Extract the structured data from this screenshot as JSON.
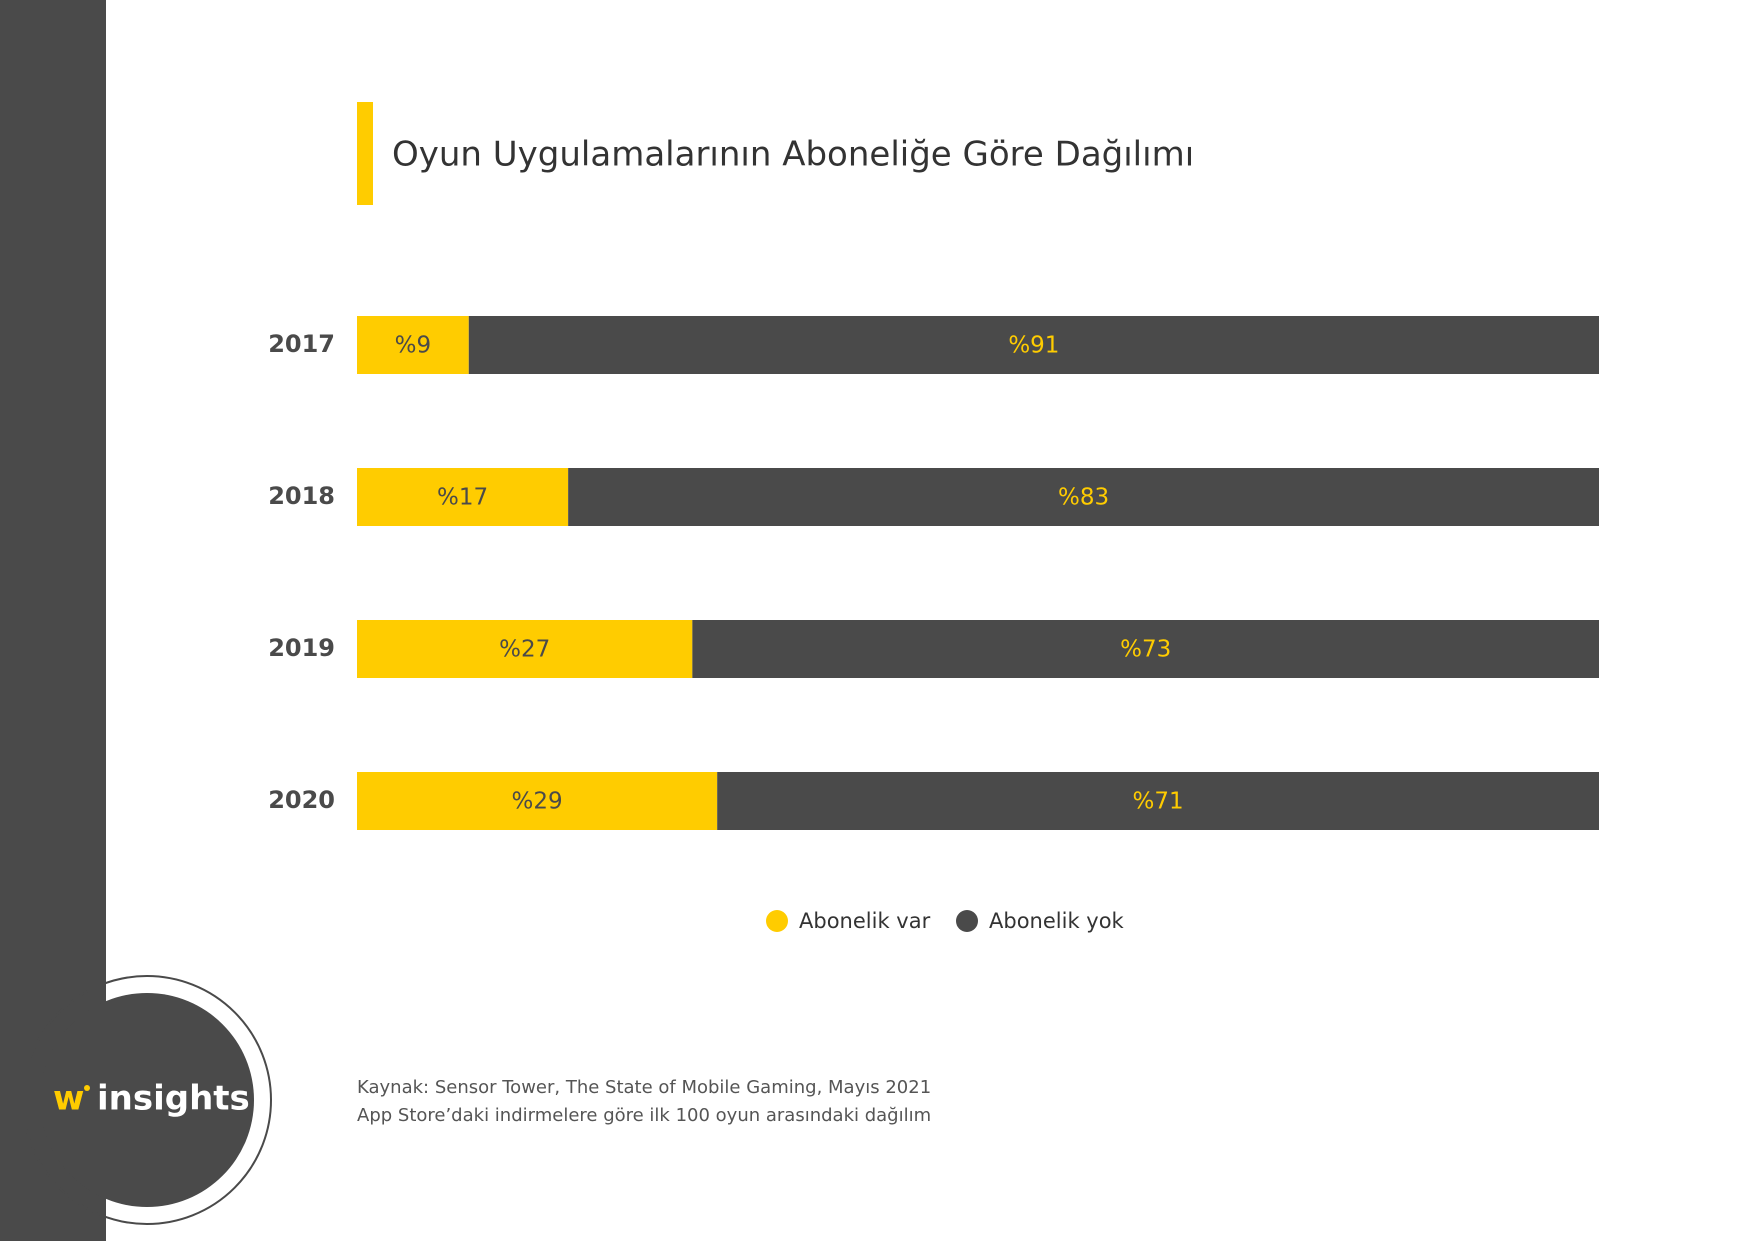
{
  "chart_data": {
    "type": "stacked-bar-horizontal",
    "title": "Oyun Uygulamalarının Aboneliğe Göre Dağılımı",
    "categories": [
      "2017",
      "2018",
      "2019",
      "2020"
    ],
    "series": [
      {
        "name": "Abonelik var",
        "color": "#ffcc00",
        "label_color": "#4a4a4a",
        "values": [
          9,
          17,
          27,
          29
        ],
        "value_labels": [
          "%9",
          "%17",
          "%27",
          "%29"
        ]
      },
      {
        "name": "Abonelik yok",
        "color": "#4a4a4a",
        "label_color": "#ffcc00",
        "values": [
          91,
          83,
          73,
          71
        ],
        "value_labels": [
          "%91",
          "%83",
          "%73",
          "%71"
        ]
      }
    ],
    "source": [
      "Kaynak: Sensor Tower, The State of Mobile Gaming, Mayıs 2021",
      "App Store’daki indirmelere göre ilk 100 oyun arasındaki dağılım"
    ]
  },
  "logo": {
    "mark": "w",
    "name": "insights"
  }
}
